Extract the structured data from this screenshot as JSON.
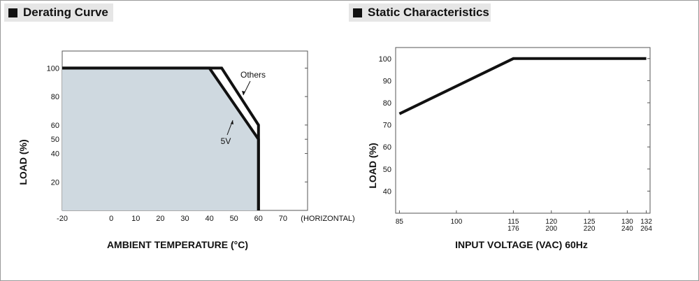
{
  "sections": {
    "derating_title": "Derating Curve",
    "static_title": "Static Characteristics"
  },
  "colors": {
    "fill": "#cfd9e0",
    "line": "#111111",
    "header_bg": "#e6e6e6"
  },
  "chart_data": [
    {
      "type": "area",
      "title": "Derating Curve",
      "xlabel": "AMBIENT TEMPERATURE (°C)",
      "ylabel": "LOAD (%)",
      "x_ticks": [
        "-20",
        "0",
        "10",
        "20",
        "30",
        "40",
        "50",
        "60",
        "70"
      ],
      "x_tick_values": [
        -20,
        0,
        10,
        20,
        30,
        40,
        50,
        60,
        70
      ],
      "x_extra_label": "(HORIZONTAL)",
      "y_ticks": [
        "20",
        "40",
        "50",
        "60",
        "80",
        "100"
      ],
      "y_tick_values": [
        20,
        40,
        50,
        60,
        80,
        100
      ],
      "xlim": [
        -20,
        80
      ],
      "ylim": [
        0,
        112
      ],
      "series": [
        {
          "name": "5V",
          "x": [
            -20,
            40,
            60,
            60
          ],
          "y": [
            100,
            100,
            50,
            0
          ]
        },
        {
          "name": "Others",
          "x": [
            -20,
            45,
            60,
            60
          ],
          "y": [
            100,
            100,
            60,
            0
          ]
        }
      ],
      "annotations": [
        "Others",
        "5V"
      ]
    },
    {
      "type": "line",
      "title": "Static Characteristics",
      "xlabel": "INPUT VOLTAGE (VAC) 60Hz",
      "ylabel": "LOAD (%)",
      "x_ticks": [
        [
          "85"
        ],
        [
          "100"
        ],
        [
          "115",
          "176"
        ],
        [
          "120",
          "200"
        ],
        [
          "125",
          "220"
        ],
        [
          "130",
          "240"
        ],
        [
          "132",
          "264"
        ]
      ],
      "x_tick_positions": [
        85,
        100,
        115,
        125,
        135,
        145,
        150
      ],
      "y_ticks": [
        "40",
        "50",
        "60",
        "70",
        "80",
        "90",
        "100"
      ],
      "y_tick_values": [
        40,
        50,
        60,
        70,
        80,
        90,
        100
      ],
      "xlim": [
        84,
        151
      ],
      "ylim": [
        30,
        105
      ],
      "series": [
        {
          "x": [
            85,
            115,
            150
          ],
          "y": [
            75,
            100,
            100
          ]
        }
      ]
    }
  ]
}
